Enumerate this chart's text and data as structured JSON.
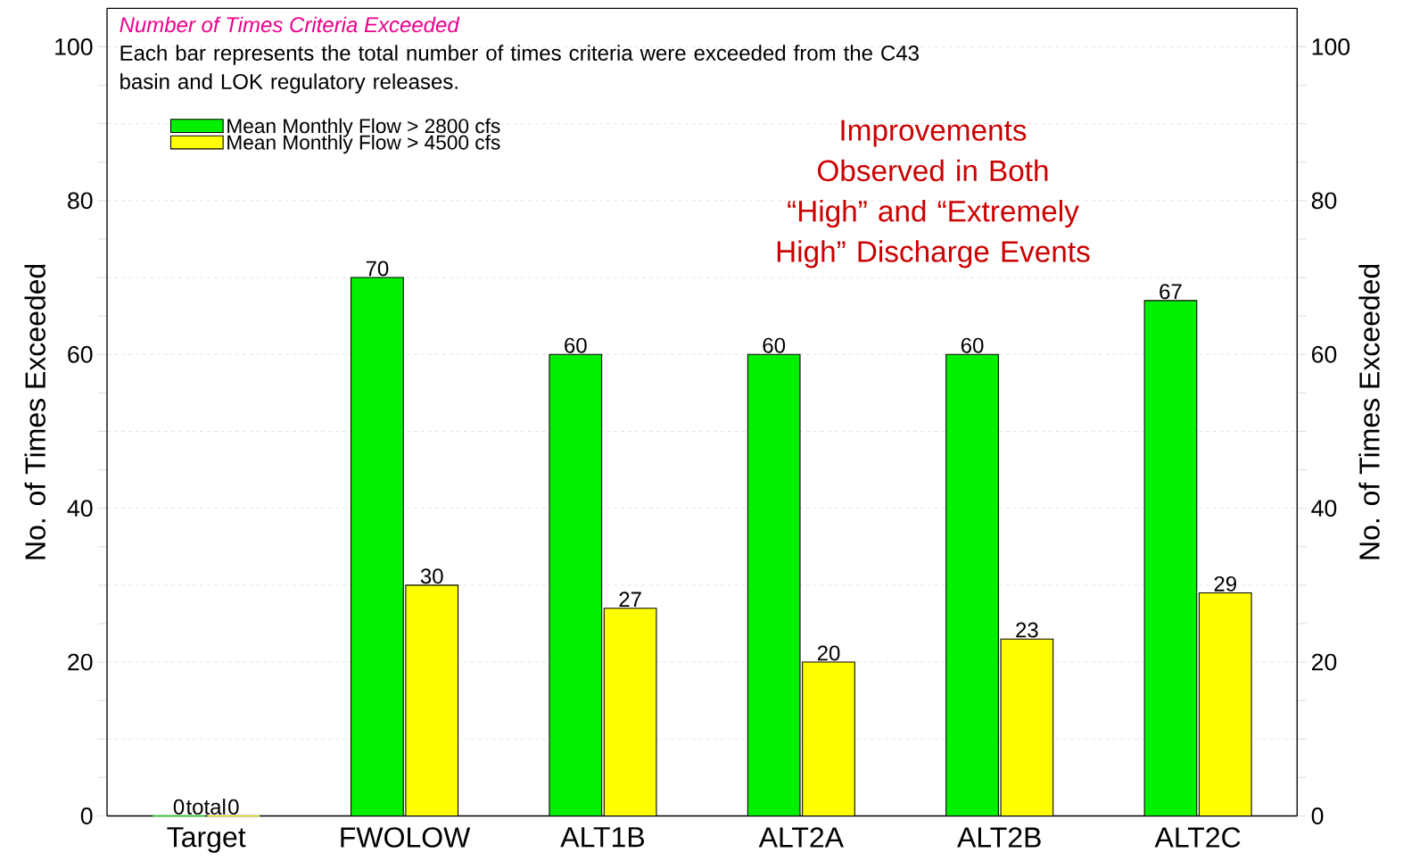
{
  "chart_data": {
    "type": "bar",
    "title": "Number of Times Criteria Exceeded",
    "subtitle": "Each bar represents the total number of times criteria were exceeded from the C43 basin and LOK regulatory releases.",
    "ylabel": "No. of Times Exceeded",
    "y2label": "No. of Times Exceeded",
    "categories": [
      "Target",
      "FWOLOW",
      "ALT1B",
      "ALT2A",
      "ALT2B",
      "ALT2C"
    ],
    "series": [
      {
        "name": "Mean Monthly Flow > 2800 cfs",
        "color": "#00f000",
        "values": [
          0,
          70,
          60,
          60,
          60,
          67
        ]
      },
      {
        "name": "Mean Monthly Flow > 4500 cfs",
        "color": "#ffff00",
        "values": [
          0,
          30,
          27,
          20,
          23,
          29
        ]
      }
    ],
    "ylim": [
      0,
      105
    ],
    "yticks": [
      0,
      {
        "value": 10,
        "label": null
      },
      20,
      {
        "value": 30,
        "label": null
      },
      40,
      {
        "value": 50,
        "label": null
      },
      60,
      {
        "value": 70,
        "label": null
      },
      80,
      {
        "value": 90,
        "label": null
      },
      100
    ],
    "y2lim": [
      0,
      105
    ],
    "y2ticks": [
      0,
      {
        "value": 10,
        "label": null
      },
      20,
      {
        "value": 30,
        "label": null
      },
      40,
      {
        "value": 50,
        "label": null
      },
      60,
      {
        "value": 70,
        "label": null
      },
      80,
      {
        "value": 90,
        "label": null
      },
      100
    ],
    "data_labels": true,
    "grid": "y",
    "legend": "top left",
    "annotations": [
      {
        "text": "total",
        "x": "Target",
        "y": 0
      },
      "Improvements Observed in Both “High” and “Extremely High” Discharge Events"
    ]
  }
}
